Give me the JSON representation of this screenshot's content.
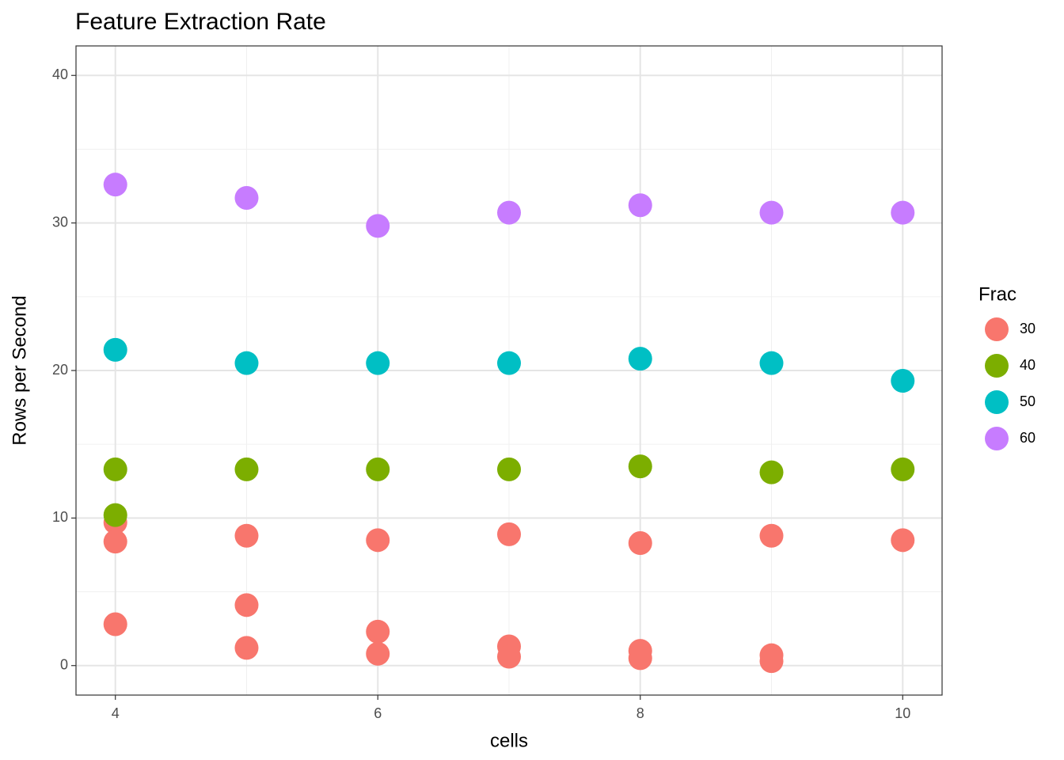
{
  "chart_data": {
    "type": "scatter",
    "title": "Feature Extraction Rate",
    "x_label": "cells",
    "y_label": "Rows per Second",
    "legend_title": "Frac",
    "legend": "right",
    "grid": true,
    "xlim": [
      3.7,
      10.3
    ],
    "ylim": [
      -2,
      42
    ],
    "xticks": [
      4,
      6,
      8,
      10
    ],
    "yticks": [
      0,
      10,
      20,
      30,
      40
    ],
    "series": [
      {
        "name": "30",
        "color": "#F8766D",
        "x": [
          4,
          4,
          4,
          5,
          5,
          5,
          6,
          6,
          6,
          7,
          7,
          7,
          8,
          8,
          8,
          9,
          9,
          9,
          10
        ],
        "values": [
          9.7,
          8.4,
          2.8,
          8.8,
          4.1,
          1.2,
          8.5,
          2.3,
          0.8,
          8.9,
          1.3,
          0.6,
          8.3,
          1.0,
          0.5,
          8.8,
          0.7,
          0.3,
          8.5
        ]
      },
      {
        "name": "40",
        "color": "#7CAE00",
        "x": [
          4,
          4,
          5,
          6,
          7,
          8,
          9,
          10
        ],
        "values": [
          13.3,
          10.2,
          13.3,
          13.3,
          13.3,
          13.5,
          13.1,
          13.3
        ]
      },
      {
        "name": "50",
        "color": "#00BFC4",
        "x": [
          4,
          5,
          6,
          7,
          8,
          9,
          10
        ],
        "values": [
          21.4,
          20.5,
          20.5,
          20.5,
          20.8,
          20.5,
          19.3
        ]
      },
      {
        "name": "60",
        "color": "#C77CFF",
        "x": [
          4,
          5,
          6,
          7,
          8,
          9,
          10
        ],
        "values": [
          32.6,
          31.7,
          29.8,
          30.7,
          31.2,
          30.7,
          30.7
        ]
      }
    ]
  }
}
